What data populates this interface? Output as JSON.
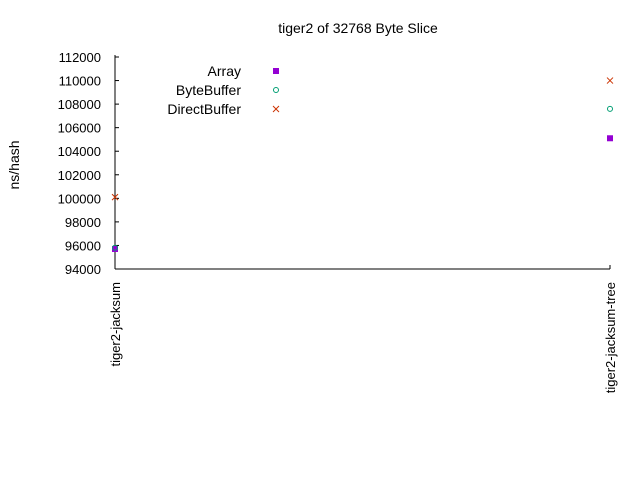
{
  "chart_data": {
    "type": "scatter",
    "title": "tiger2 of 32768 Byte Slice",
    "xlabel": "",
    "ylabel": "ns/hash",
    "categories": [
      "tiger2-jacksum",
      "tiger2-jacksum-tree"
    ],
    "ylim": [
      94000,
      112000
    ],
    "yticks": [
      94000,
      96000,
      98000,
      100000,
      102000,
      104000,
      106000,
      108000,
      110000,
      112000
    ],
    "grid": false,
    "legend_position": "top-left",
    "series": [
      {
        "name": "Array",
        "marker": "filled-square",
        "color": "#9400d3",
        "values": [
          95700,
          105100
        ]
      },
      {
        "name": "ByteBuffer",
        "marker": "open-circle",
        "color": "#009e73",
        "values": [
          95800,
          107600
        ]
      },
      {
        "name": "DirectBuffer",
        "marker": "cross",
        "color": "#cc3300",
        "values": [
          100100,
          110000
        ]
      }
    ]
  }
}
